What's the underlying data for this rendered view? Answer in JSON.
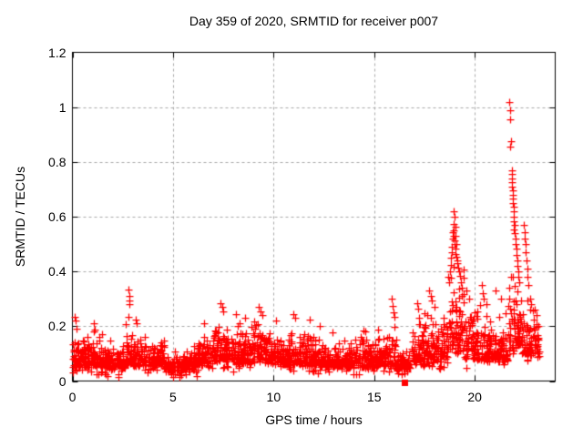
{
  "window": {
    "background": "#ffffff"
  },
  "chart_data": {
    "type": "scatter",
    "title": "Day 359 of 2020, SRMTID for receiver p007",
    "xlabel": "GPS time / hours",
    "ylabel": "SRMTID / TECUs",
    "xlim": [
      0,
      24
    ],
    "ylim": [
      0,
      1.2
    ],
    "xticks": {
      "values": [
        0,
        5,
        10,
        15,
        20
      ],
      "labels": [
        "0",
        "5",
        "10",
        "15",
        "20"
      ]
    },
    "yticks": {
      "values": [
        0,
        0.2,
        0.4,
        0.6,
        0.8,
        1.0,
        1.2
      ],
      "labels": [
        "0",
        "0.2",
        "0.4",
        "0.6",
        "0.8",
        "1",
        "1.2"
      ]
    },
    "grid": true,
    "grid_color": "#a8a8a8",
    "frame_color": "#000000",
    "legend": "none",
    "series": [
      {
        "name": "SRMTID",
        "marker": "plus",
        "color": "#ff0000",
        "seed": 1359007,
        "generated_segments_format": [
          "x_start_hour",
          "x_end_hour",
          "n_points",
          "baseline_tecu",
          "upward_spread_tecu"
        ],
        "generated_segments": [
          [
            0.0,
            0.35,
            40,
            0.05,
            0.055
          ],
          [
            0.35,
            1.0,
            70,
            0.05,
            0.04
          ],
          [
            1.0,
            1.35,
            40,
            0.055,
            0.05
          ],
          [
            1.35,
            2.1,
            80,
            0.05,
            0.038
          ],
          [
            2.1,
            2.65,
            55,
            0.045,
            0.035
          ],
          [
            2.65,
            3.05,
            45,
            0.06,
            0.06
          ],
          [
            3.05,
            3.7,
            65,
            0.055,
            0.05
          ],
          [
            3.7,
            4.6,
            90,
            0.05,
            0.04
          ],
          [
            4.6,
            5.4,
            75,
            0.035,
            0.025
          ],
          [
            5.4,
            6.2,
            75,
            0.04,
            0.03
          ],
          [
            6.2,
            7.0,
            80,
            0.055,
            0.045
          ],
          [
            7.0,
            7.8,
            85,
            0.07,
            0.06
          ],
          [
            7.8,
            8.7,
            90,
            0.06,
            0.055
          ],
          [
            8.7,
            9.6,
            90,
            0.065,
            0.06
          ],
          [
            9.6,
            10.5,
            90,
            0.06,
            0.05
          ],
          [
            10.5,
            11.3,
            85,
            0.06,
            0.05
          ],
          [
            11.3,
            12.1,
            85,
            0.055,
            0.05
          ],
          [
            12.1,
            13.2,
            100,
            0.05,
            0.04
          ],
          [
            13.2,
            14.3,
            100,
            0.05,
            0.04
          ],
          [
            14.3,
            15.2,
            90,
            0.05,
            0.045
          ],
          [
            15.2,
            16.1,
            90,
            0.055,
            0.055
          ],
          [
            16.1,
            16.85,
            70,
            0.04,
            0.03
          ],
          [
            16.85,
            17.5,
            65,
            0.06,
            0.06
          ],
          [
            17.5,
            18.3,
            75,
            0.07,
            0.07
          ],
          [
            18.3,
            18.65,
            35,
            0.08,
            0.08
          ],
          [
            18.65,
            19.45,
            80,
            0.1,
            0.13
          ],
          [
            19.45,
            20.3,
            80,
            0.08,
            0.08
          ],
          [
            20.3,
            21.1,
            80,
            0.07,
            0.065
          ],
          [
            21.1,
            21.65,
            55,
            0.07,
            0.06
          ],
          [
            21.65,
            22.4,
            75,
            0.1,
            0.1
          ],
          [
            22.4,
            23.2,
            80,
            0.09,
            0.08
          ]
        ],
        "notable_points": [
          [
            0.12,
            0.235
          ],
          [
            0.15,
            0.22
          ],
          [
            1.05,
            0.21
          ],
          [
            2.8,
            0.335
          ],
          [
            2.81,
            0.31
          ],
          [
            2.82,
            0.295
          ],
          [
            2.83,
            0.28
          ],
          [
            2.8,
            0.235
          ],
          [
            3.15,
            0.225
          ],
          [
            3.2,
            0.21
          ],
          [
            6.55,
            0.21
          ],
          [
            7.35,
            0.285
          ],
          [
            7.45,
            0.27
          ],
          [
            7.5,
            0.255
          ],
          [
            8.15,
            0.245
          ],
          [
            8.6,
            0.23
          ],
          [
            9.25,
            0.27
          ],
          [
            9.35,
            0.255
          ],
          [
            9.45,
            0.24
          ],
          [
            10.1,
            0.22
          ],
          [
            11.0,
            0.245
          ],
          [
            11.05,
            0.23
          ],
          [
            11.8,
            0.225
          ],
          [
            12.3,
            0.2
          ],
          [
            14.45,
            0.185
          ],
          [
            15.85,
            0.3
          ],
          [
            15.9,
            0.275
          ],
          [
            15.95,
            0.25
          ],
          [
            16.0,
            0.235
          ],
          [
            17.15,
            0.285
          ],
          [
            17.2,
            0.265
          ],
          [
            17.75,
            0.33
          ],
          [
            17.8,
            0.31
          ],
          [
            17.85,
            0.295
          ],
          [
            18.0,
            0.27
          ],
          [
            18.72,
            0.36
          ],
          [
            18.76,
            0.4
          ],
          [
            18.8,
            0.425
          ],
          [
            18.83,
            0.45
          ],
          [
            18.86,
            0.47
          ],
          [
            18.88,
            0.49
          ],
          [
            18.9,
            0.52
          ],
          [
            18.92,
            0.545
          ],
          [
            18.93,
            0.575
          ],
          [
            18.95,
            0.55
          ],
          [
            18.96,
            0.53
          ],
          [
            18.97,
            0.62
          ],
          [
            18.98,
            0.515
          ],
          [
            19.0,
            0.6
          ],
          [
            19.0,
            0.5
          ],
          [
            19.02,
            0.565
          ],
          [
            19.03,
            0.485
          ],
          [
            19.05,
            0.53
          ],
          [
            19.06,
            0.465
          ],
          [
            19.08,
            0.5
          ],
          [
            19.1,
            0.455
          ],
          [
            19.12,
            0.44
          ],
          [
            19.15,
            0.43
          ],
          [
            19.18,
            0.415
          ],
          [
            19.22,
            0.4
          ],
          [
            19.26,
            0.385
          ],
          [
            19.3,
            0.36
          ],
          [
            19.35,
            0.34
          ],
          [
            19.6,
            0.33
          ],
          [
            19.7,
            0.3
          ],
          [
            20.35,
            0.35
          ],
          [
            20.4,
            0.32
          ],
          [
            20.45,
            0.3
          ],
          [
            21.05,
            0.33
          ],
          [
            21.3,
            0.3
          ],
          [
            21.7,
            0.3
          ],
          [
            21.72,
            0.34
          ],
          [
            21.73,
            1.02
          ],
          [
            21.74,
            0.99
          ],
          [
            21.76,
            0.955
          ],
          [
            21.78,
            0.855
          ],
          [
            21.8,
            0.875
          ],
          [
            21.82,
            0.38
          ],
          [
            21.83,
            0.74
          ],
          [
            21.84,
            0.77
          ],
          [
            21.85,
            0.755
          ],
          [
            21.86,
            0.725
          ],
          [
            21.87,
            0.71
          ],
          [
            21.88,
            0.68
          ],
          [
            21.88,
            0.695
          ],
          [
            21.9,
            0.65
          ],
          [
            21.9,
            0.665
          ],
          [
            21.92,
            0.62
          ],
          [
            21.93,
            0.635
          ],
          [
            21.94,
            0.585
          ],
          [
            21.95,
            0.6
          ],
          [
            21.96,
            0.555
          ],
          [
            21.97,
            0.57
          ],
          [
            22.0,
            0.54
          ],
          [
            22.02,
            0.52
          ],
          [
            22.04,
            0.5
          ],
          [
            22.06,
            0.485
          ],
          [
            22.08,
            0.46
          ],
          [
            22.1,
            0.44
          ],
          [
            22.12,
            0.42
          ],
          [
            22.15,
            0.4
          ],
          [
            22.18,
            0.38
          ],
          [
            22.22,
            0.36
          ],
          [
            22.45,
            0.57
          ],
          [
            22.47,
            0.545
          ],
          [
            22.5,
            0.52
          ],
          [
            22.52,
            0.5
          ],
          [
            22.55,
            0.47
          ],
          [
            22.57,
            0.44
          ],
          [
            22.6,
            0.41
          ],
          [
            22.62,
            0.38
          ],
          [
            22.65,
            0.35
          ],
          [
            22.75,
            0.3
          ],
          [
            22.8,
            0.28
          ],
          [
            23.0,
            0.26
          ],
          [
            23.05,
            0.24
          ]
        ]
      },
      {
        "name": "flagged-sample",
        "marker": "filled-square",
        "color": "#ff0000",
        "points": [
          [
            16.5,
            -0.004
          ]
        ]
      }
    ]
  }
}
